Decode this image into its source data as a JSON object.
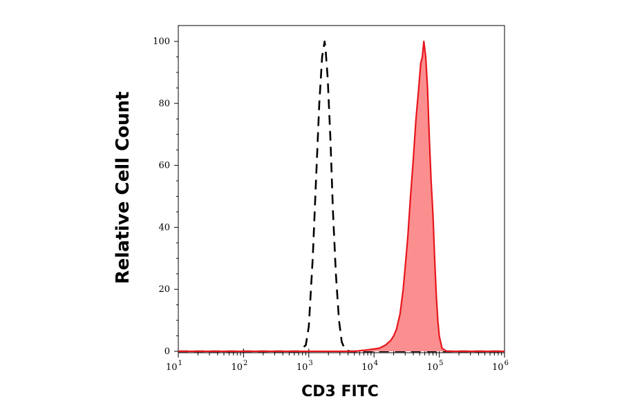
{
  "chart_data": {
    "type": "area",
    "title": "",
    "xlabel": "CD3 FITC",
    "ylabel": "Relative Cell Count",
    "x_scale": "log",
    "xlim": [
      10,
      1000000
    ],
    "ylim": [
      0,
      100
    ],
    "grid": false,
    "legend": "none",
    "y_ticks": [
      {
        "value": 0,
        "label": "0"
      },
      {
        "value": 20,
        "label": "20"
      },
      {
        "value": 40,
        "label": "40"
      },
      {
        "value": 60,
        "label": "60"
      },
      {
        "value": 80,
        "label": "80"
      },
      {
        "value": 100,
        "label": "100"
      }
    ],
    "x_ticks": [
      {
        "value": 10,
        "base": "10",
        "exp": "1"
      },
      {
        "value": 100,
        "base": "10",
        "exp": "2"
      },
      {
        "value": 1000,
        "base": "10",
        "exp": "3"
      },
      {
        "value": 10000,
        "base": "10",
        "exp": "4"
      },
      {
        "value": 100000,
        "base": "10",
        "exp": "5"
      },
      {
        "value": 1000000,
        "base": "10",
        "exp": "6"
      }
    ],
    "series": [
      {
        "style": "dashed-line",
        "color": "#000000",
        "x": [
          10,
          700,
          900,
          1000,
          1150,
          1300,
          1450,
          1600,
          1750,
          1800,
          1950,
          2150,
          2350,
          2600,
          2900,
          3200,
          3600,
          4200,
          1000000
        ],
        "y": [
          0,
          0,
          2,
          8,
          30,
          57,
          80,
          95,
          100,
          98,
          88,
          68,
          45,
          25,
          10,
          3,
          0.6,
          0,
          0
        ]
      },
      {
        "style": "filled-area",
        "color": "#e8141b",
        "fill": "#fb8f8f",
        "x": [
          10,
          5000,
          8000,
          12000,
          15000,
          18000,
          20000,
          22000,
          25000,
          28000,
          30000,
          33000,
          36000,
          40000,
          44000,
          48000,
          52000,
          55000,
          58000,
          62000,
          66000,
          70000,
          75000,
          80000,
          85000,
          90000,
          95000,
          100000,
          110000,
          130000,
          1000000
        ],
        "y": [
          0,
          0,
          0.5,
          1,
          2,
          3.5,
          5,
          7,
          12,
          20,
          27,
          37,
          49,
          62,
          75,
          84,
          93,
          95,
          100,
          95,
          85,
          70,
          55,
          44,
          30,
          18,
          10,
          5,
          1,
          0,
          0
        ]
      }
    ]
  }
}
